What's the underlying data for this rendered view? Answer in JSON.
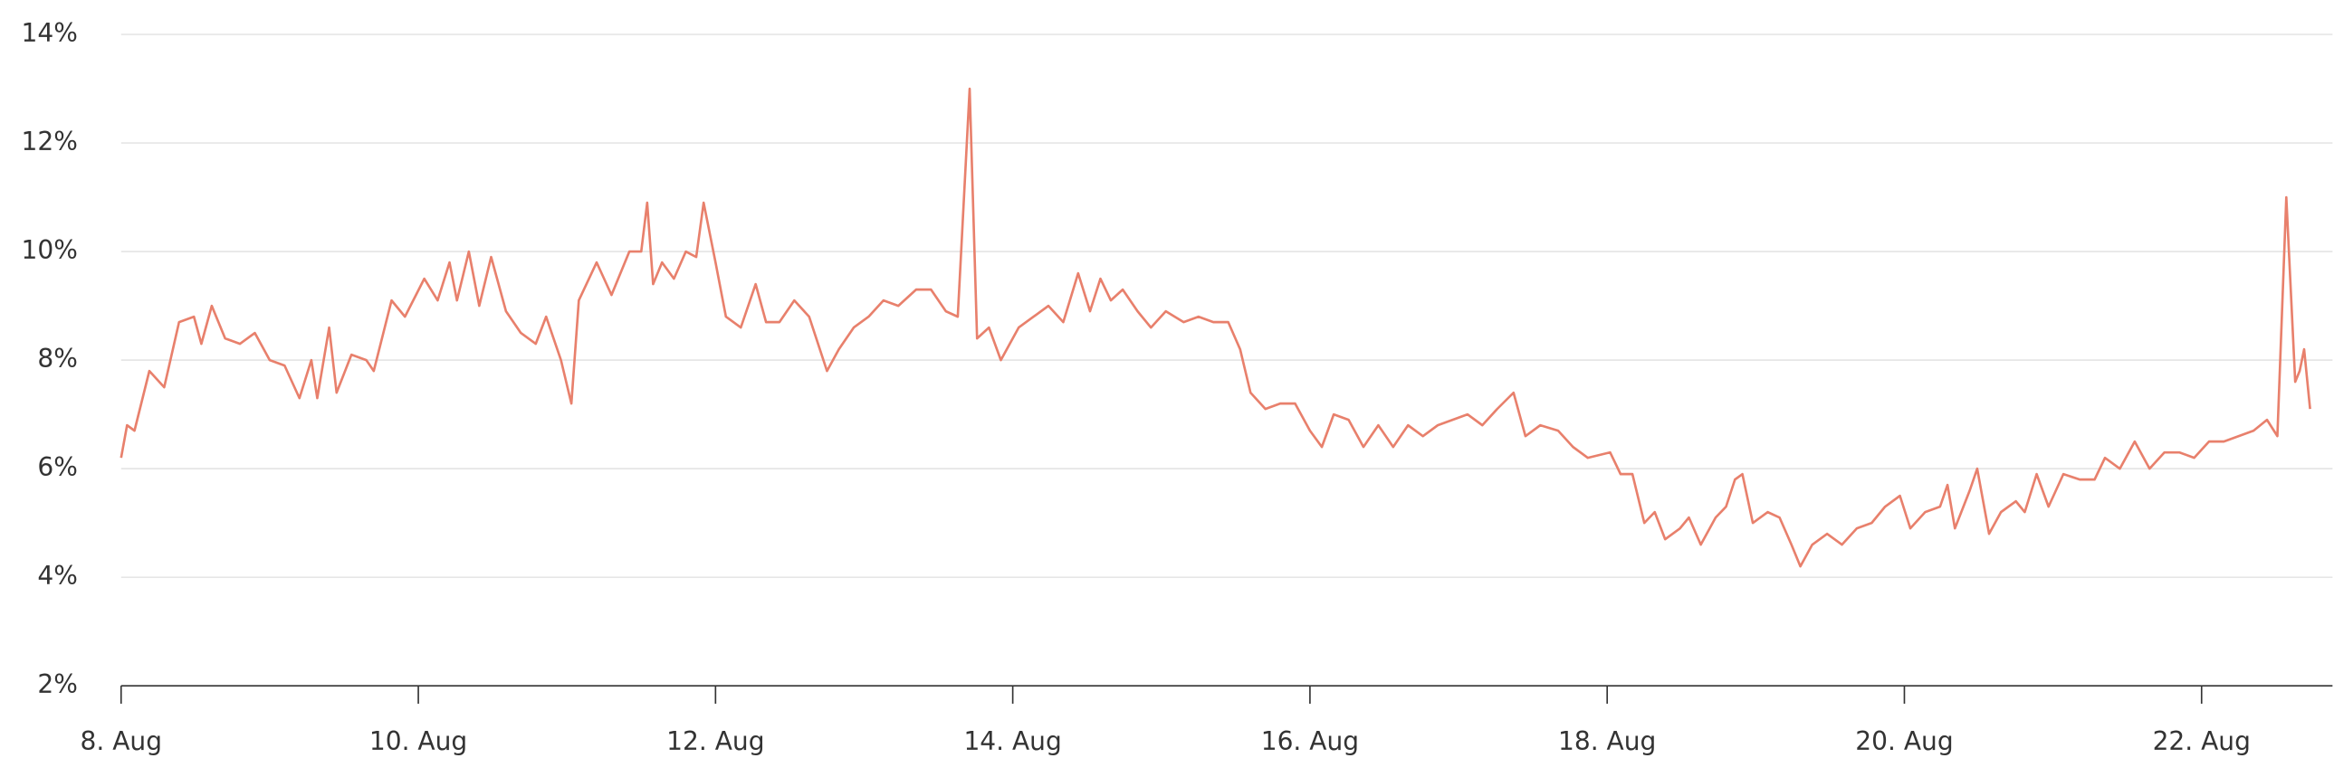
{
  "chart_data": {
    "type": "line",
    "x": [
      8.0,
      8.04,
      8.09,
      8.19,
      8.29,
      8.39,
      8.49,
      8.54,
      8.61,
      8.7,
      8.8,
      8.9,
      9.0,
      9.1,
      9.2,
      9.28,
      9.32,
      9.4,
      9.45,
      9.55,
      9.65,
      9.7,
      9.82,
      9.91,
      10.04,
      10.13,
      10.21,
      10.26,
      10.34,
      10.41,
      10.49,
      10.59,
      10.69,
      10.79,
      10.86,
      10.96,
      11.03,
      11.08,
      11.2,
      11.3,
      11.42,
      11.5,
      11.54,
      11.58,
      11.64,
      11.72,
      11.8,
      11.87,
      11.92,
      12.0,
      12.07,
      12.17,
      12.27,
      12.34,
      12.43,
      12.53,
      12.63,
      12.75,
      12.83,
      12.93,
      13.03,
      13.13,
      13.23,
      13.35,
      13.45,
      13.55,
      13.63,
      13.71,
      13.76,
      13.84,
      13.92,
      14.04,
      14.14,
      14.24,
      14.34,
      14.44,
      14.52,
      14.59,
      14.66,
      14.74,
      14.84,
      14.93,
      15.03,
      15.15,
      15.25,
      15.35,
      15.45,
      15.53,
      15.6,
      15.7,
      15.8,
      15.9,
      16.0,
      16.08,
      16.16,
      16.26,
      16.36,
      16.46,
      16.56,
      16.66,
      16.76,
      16.86,
      16.96,
      17.06,
      17.16,
      17.26,
      17.37,
      17.45,
      17.55,
      17.67,
      17.77,
      17.87,
      18.02,
      18.09,
      18.17,
      18.25,
      18.32,
      18.39,
      18.49,
      18.55,
      18.63,
      18.73,
      18.8,
      18.86,
      18.91,
      18.98,
      19.08,
      19.16,
      19.24,
      19.3,
      19.38,
      19.48,
      19.58,
      19.68,
      19.78,
      19.87,
      19.97,
      20.04,
      20.14,
      20.24,
      20.29,
      20.34,
      20.44,
      20.49,
      20.57,
      20.65,
      20.75,
      20.81,
      20.89,
      20.97,
      21.07,
      21.18,
      21.28,
      21.35,
      21.45,
      21.55,
      21.65,
      21.75,
      21.85,
      21.95,
      22.05,
      22.15,
      22.25,
      22.35,
      22.44,
      22.51,
      22.57,
      22.63,
      22.66,
      22.69,
      22.73
    ],
    "values": [
      6.2,
      6.8,
      6.7,
      7.8,
      7.5,
      8.7,
      8.8,
      8.3,
      9.0,
      8.4,
      8.3,
      8.5,
      8.0,
      7.9,
      7.3,
      8.0,
      7.3,
      8.6,
      7.4,
      8.1,
      8.0,
      7.8,
      9.1,
      8.8,
      9.5,
      9.1,
      9.8,
      9.1,
      10.0,
      9.0,
      9.9,
      8.9,
      8.5,
      8.3,
      8.8,
      8.0,
      7.2,
      9.1,
      9.8,
      9.2,
      10.0,
      10.0,
      10.9,
      9.4,
      9.8,
      9.5,
      10.0,
      9.9,
      10.9,
      9.8,
      8.8,
      8.6,
      9.4,
      8.7,
      8.7,
      9.1,
      8.8,
      7.8,
      8.2,
      8.6,
      8.8,
      9.1,
      9.0,
      9.3,
      9.3,
      8.9,
      8.8,
      13.0,
      8.4,
      8.6,
      8.0,
      8.6,
      8.8,
      9.0,
      8.7,
      9.6,
      8.9,
      9.5,
      9.1,
      9.3,
      8.9,
      8.6,
      8.9,
      8.7,
      8.8,
      8.7,
      8.7,
      8.2,
      7.4,
      7.1,
      7.2,
      7.2,
      6.7,
      6.4,
      7.0,
      6.9,
      6.4,
      6.8,
      6.4,
      6.8,
      6.6,
      6.8,
      6.9,
      7.0,
      6.8,
      7.1,
      7.4,
      6.6,
      6.8,
      6.7,
      6.4,
      6.2,
      6.3,
      5.9,
      5.9,
      5.0,
      5.2,
      4.7,
      4.9,
      5.1,
      4.6,
      5.1,
      5.3,
      5.8,
      5.9,
      5.0,
      5.2,
      5.1,
      4.6,
      4.2,
      4.6,
      4.8,
      4.6,
      4.9,
      5.0,
      5.3,
      5.5,
      4.9,
      5.2,
      5.3,
      5.7,
      4.9,
      5.6,
      6.0,
      4.8,
      5.2,
      5.4,
      5.2,
      5.9,
      5.3,
      5.9,
      5.8,
      5.8,
      6.2,
      6.0,
      6.5,
      6.0,
      6.3,
      6.3,
      6.2,
      6.5,
      6.5,
      6.6,
      6.7,
      6.9,
      6.6,
      11.0,
      7.6,
      7.8,
      8.2,
      7.1
    ],
    "color": "#e8806c",
    "xlim": [
      8,
      22.73
    ],
    "xticks": [
      {
        "value": 8,
        "label": "8. Aug"
      },
      {
        "value": 10,
        "label": "10. Aug"
      },
      {
        "value": 12,
        "label": "12. Aug"
      },
      {
        "value": 14,
        "label": "14. Aug"
      },
      {
        "value": 16,
        "label": "16. Aug"
      },
      {
        "value": 18,
        "label": "18. Aug"
      },
      {
        "value": 20,
        "label": "20. Aug"
      },
      {
        "value": 22,
        "label": "22. Aug"
      }
    ],
    "ylim": [
      2,
      14
    ],
    "yticks": [
      {
        "value": 2,
        "label": "2%"
      },
      {
        "value": 4,
        "label": "4%"
      },
      {
        "value": 6,
        "label": "6%"
      },
      {
        "value": 8,
        "label": "8%"
      },
      {
        "value": 10,
        "label": "10%"
      },
      {
        "value": 12,
        "label": "12%"
      },
      {
        "value": 14,
        "label": "14%"
      }
    ],
    "grid": true
  }
}
